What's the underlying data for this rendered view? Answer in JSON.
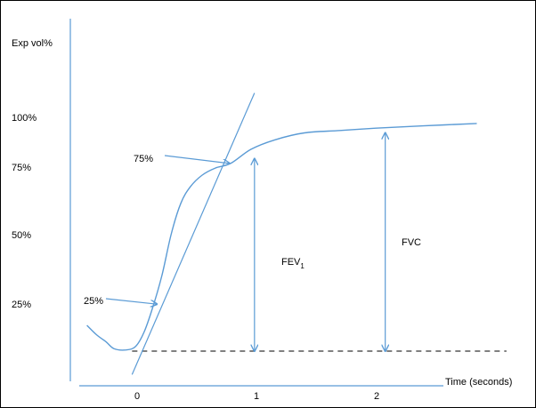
{
  "chart_data": {
    "type": "line",
    "ylabel": "Exp vol%",
    "xlabel": "Time (seconds)",
    "y_ticks": [
      "100%",
      "75%",
      "50%",
      "25%"
    ],
    "x_ticks": [
      "0",
      "1",
      "2"
    ],
    "x_range": [
      -0.7,
      3.3
    ],
    "y_range": [
      -20,
      110
    ],
    "colors": {
      "curve": "#5b9bd5",
      "axis": "#5b9bd5",
      "baseline": "#000000",
      "text": "#000000"
    },
    "series": [
      {
        "values": [
          [
            -0.43,
            11
          ],
          [
            -0.35,
            7
          ],
          [
            -0.27,
            4
          ],
          [
            -0.2,
            1
          ],
          [
            -0.1,
            0.5
          ],
          [
            -0.02,
            2
          ],
          [
            0.05,
            8
          ],
          [
            0.12,
            18
          ],
          [
            0.2,
            32
          ],
          [
            0.28,
            50
          ],
          [
            0.36,
            63
          ],
          [
            0.44,
            70
          ],
          [
            0.54,
            75
          ],
          [
            0.65,
            78
          ],
          [
            0.78,
            80
          ],
          [
            0.95,
            86
          ],
          [
            1.15,
            90
          ],
          [
            1.4,
            93
          ],
          [
            1.7,
            94
          ],
          [
            2.0,
            95
          ],
          [
            2.4,
            96
          ],
          [
            2.85,
            97
          ]
        ]
      }
    ],
    "tangent": {
      "from": [
        -0.05,
        -10
      ],
      "to": [
        0.98,
        110
      ]
    },
    "baseline_y": 0,
    "annotations": [
      {
        "label": "75%",
        "arrow_to": [
          0.77,
          80
        ]
      },
      {
        "label": "25%",
        "arrow_to": [
          0.16,
          20
        ]
      }
    ],
    "measures": [
      {
        "label": "FEV",
        "subscript": "1",
        "x": 0.98,
        "from": 0,
        "to": 82
      },
      {
        "label": "FVC",
        "x": 2.08,
        "from": 0,
        "to": 93
      }
    ]
  }
}
